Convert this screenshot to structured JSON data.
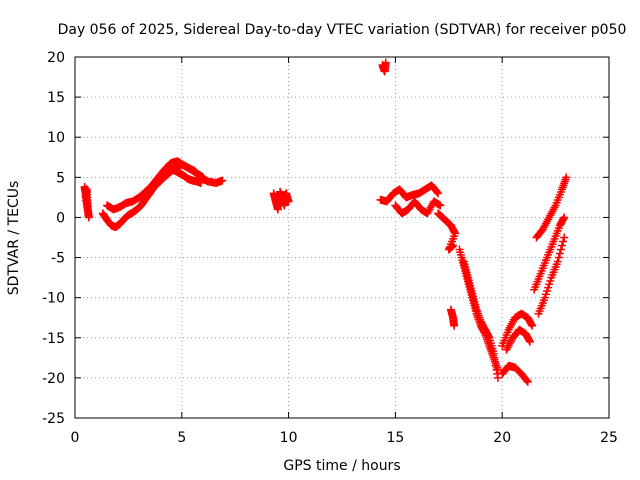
{
  "chart_data": {
    "type": "scatter",
    "title": "Day 056 of 2025, Sidereal Day-to-day VTEC variation (SDTVAR) for receiver p050",
    "xlabel": "GPS time / hours",
    "ylabel": "SDTVAR / TECUs",
    "xlim": [
      0,
      25
    ],
    "ylim": [
      -25,
      20
    ],
    "xticks": [
      0,
      5,
      10,
      15,
      20,
      25
    ],
    "yticks": [
      -25,
      -20,
      -15,
      -10,
      -5,
      0,
      5,
      10,
      15,
      20
    ],
    "grid": true,
    "marker": "plus",
    "color": "#ff0000",
    "series": [
      {
        "x": [
          0.45,
          0.5,
          0.55,
          0.6,
          0.65,
          0.5,
          0.55,
          0.6
        ],
        "y": [
          3.8,
          3.0,
          2.0,
          1.0,
          0.0,
          2.5,
          3.5,
          1.5
        ]
      },
      {
        "x": [
          1.3,
          1.5,
          1.7,
          1.9,
          2.1,
          2.3,
          2.5,
          2.7,
          2.9,
          3.1,
          3.3,
          3.5,
          3.7,
          3.9,
          4.1,
          4.3,
          4.5,
          4.7,
          4.9,
          5.1,
          5.3,
          5.5,
          5.7,
          5.9
        ],
        "y": [
          0.5,
          -0.3,
          -1.0,
          -1.2,
          -0.8,
          -0.2,
          0.3,
          0.6,
          1.0,
          1.5,
          2.3,
          3.0,
          3.8,
          4.5,
          5.0,
          5.6,
          6.0,
          5.8,
          5.5,
          5.2,
          4.8,
          4.6,
          4.5,
          4.3
        ]
      },
      {
        "x": [
          1.5,
          1.8,
          2.1,
          2.4,
          2.7,
          3.0,
          3.3,
          3.6,
          3.9,
          4.2,
          4.5,
          4.8,
          5.1,
          5.4,
          5.7,
          6.0
        ],
        "y": [
          1.5,
          1.0,
          1.3,
          1.8,
          2.0,
          2.5,
          3.2,
          4.0,
          5.0,
          6.0,
          6.8,
          7.0,
          6.5,
          6.0,
          5.5,
          5.0
        ]
      },
      {
        "x": [
          3.8,
          4.1,
          4.4,
          4.7,
          5.0,
          5.3,
          5.6,
          5.9,
          6.2,
          6.6,
          6.9
        ],
        "y": [
          4.0,
          4.8,
          5.5,
          6.2,
          6.6,
          6.2,
          5.8,
          5.0,
          4.5,
          4.3,
          4.6
        ]
      },
      {
        "x": [
          9.3,
          9.4,
          9.5,
          9.6,
          9.7,
          9.8,
          9.9,
          10.0,
          9.5,
          9.7,
          9.9
        ],
        "y": [
          3.0,
          2.0,
          1.0,
          3.2,
          2.5,
          1.5,
          2.8,
          2.0,
          1.8,
          2.4,
          3.0
        ]
      },
      {
        "x": [
          14.4,
          14.45,
          14.5,
          14.55
        ],
        "y": [
          19.0,
          18.6,
          18.2,
          19.3
        ]
      },
      {
        "x": [
          14.3,
          14.6,
          14.9,
          15.2,
          15.5,
          15.8,
          16.1,
          16.4,
          16.7,
          17.0
        ],
        "y": [
          2.2,
          2.0,
          3.0,
          3.5,
          2.5,
          2.8,
          3.0,
          3.5,
          4.0,
          3.0
        ]
      },
      {
        "x": [
          15.0,
          15.3,
          15.6,
          15.9,
          16.2,
          16.5,
          16.8,
          17.1
        ],
        "y": [
          1.5,
          0.5,
          1.0,
          2.0,
          1.0,
          0.5,
          2.0,
          1.5
        ]
      },
      {
        "x": [
          17.0,
          17.2,
          17.4,
          17.6,
          17.8,
          17.5,
          17.7
        ],
        "y": [
          0.5,
          0.0,
          -0.5,
          -1.0,
          -2.0,
          -4.0,
          -3.5
        ]
      },
      {
        "x": [
          17.6,
          17.7,
          17.75
        ],
        "y": [
          -11.5,
          -12.5,
          -13.5
        ]
      },
      {
        "x": [
          18.0,
          18.2,
          18.4,
          18.6,
          18.8,
          19.0,
          19.2,
          19.4,
          19.6,
          19.8
        ],
        "y": [
          -4.0,
          -6.0,
          -8.0,
          -10.0,
          -12.0,
          -13.5,
          -14.5,
          -16.0,
          -17.5,
          -19.0
        ]
      },
      {
        "x": [
          18.2,
          18.4,
          18.6,
          18.8,
          19.0,
          19.2,
          19.4,
          19.6,
          19.8
        ],
        "y": [
          -5.5,
          -7.5,
          -9.5,
          -11.5,
          -13.0,
          -14.0,
          -15.0,
          -17.0,
          -20.0
        ]
      },
      {
        "x": [
          20.0,
          20.3,
          20.6,
          20.9,
          21.2,
          21.4
        ],
        "y": [
          -16.0,
          -14.0,
          -12.5,
          -12.0,
          -12.5,
          -13.5
        ]
      },
      {
        "x": [
          20.0,
          20.3,
          20.6,
          20.9,
          21.2
        ],
        "y": [
          -19.5,
          -18.5,
          -18.7,
          -19.5,
          -20.5
        ]
      },
      {
        "x": [
          20.2,
          20.5,
          20.8,
          21.1,
          21.3
        ],
        "y": [
          -16.5,
          -15.0,
          -14.0,
          -14.5,
          -15.5
        ]
      },
      {
        "x": [
          21.5,
          21.8,
          22.1,
          22.4,
          22.7,
          22.9
        ],
        "y": [
          -9.0,
          -7.0,
          -5.0,
          -3.0,
          -1.0,
          0.0
        ]
      },
      {
        "x": [
          21.7,
          22.0,
          22.3,
          22.6,
          22.9
        ],
        "y": [
          -12.0,
          -10.0,
          -7.5,
          -5.5,
          -2.5
        ]
      },
      {
        "x": [
          21.6,
          21.9,
          22.2,
          22.5,
          22.8,
          23.0
        ],
        "y": [
          -2.5,
          -1.5,
          0.0,
          1.5,
          3.5,
          5.0
        ]
      }
    ]
  }
}
